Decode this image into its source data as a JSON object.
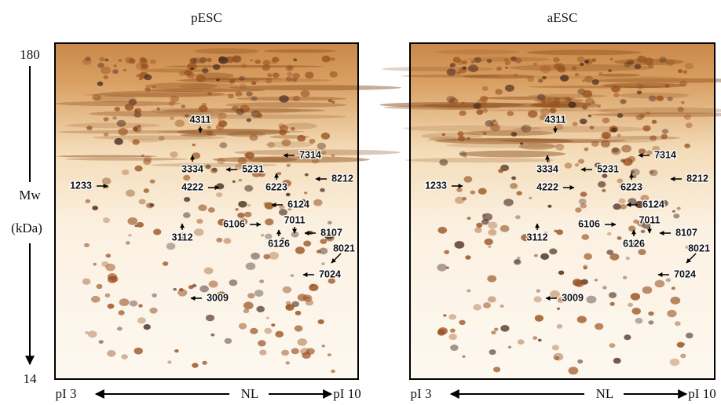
{
  "axis": {
    "y_top": "180",
    "y_label": "Mw",
    "y_unit": "(kDa)",
    "y_bottom": "14"
  },
  "panels": [
    {
      "title": "pESC",
      "x_left": "pI 3",
      "x_center": "NL",
      "x_right": "pI 10",
      "spots": [
        "4311",
        "3334",
        "5231",
        "7314",
        "8212",
        "1233",
        "4222",
        "6223",
        "6124",
        "6106",
        "7011",
        "8107",
        "3112",
        "6126",
        "8021",
        "7024",
        "3009"
      ]
    },
    {
      "title": "aESC",
      "x_left": "pI 3",
      "x_center": "NL",
      "x_right": "pI 10",
      "spots": [
        "4311",
        "3334",
        "5231",
        "7314",
        "8212",
        "1233",
        "4222",
        "6223",
        "6124",
        "6106",
        "7011",
        "8107",
        "3112",
        "6126",
        "8021",
        "7024",
        "3009"
      ]
    }
  ]
}
